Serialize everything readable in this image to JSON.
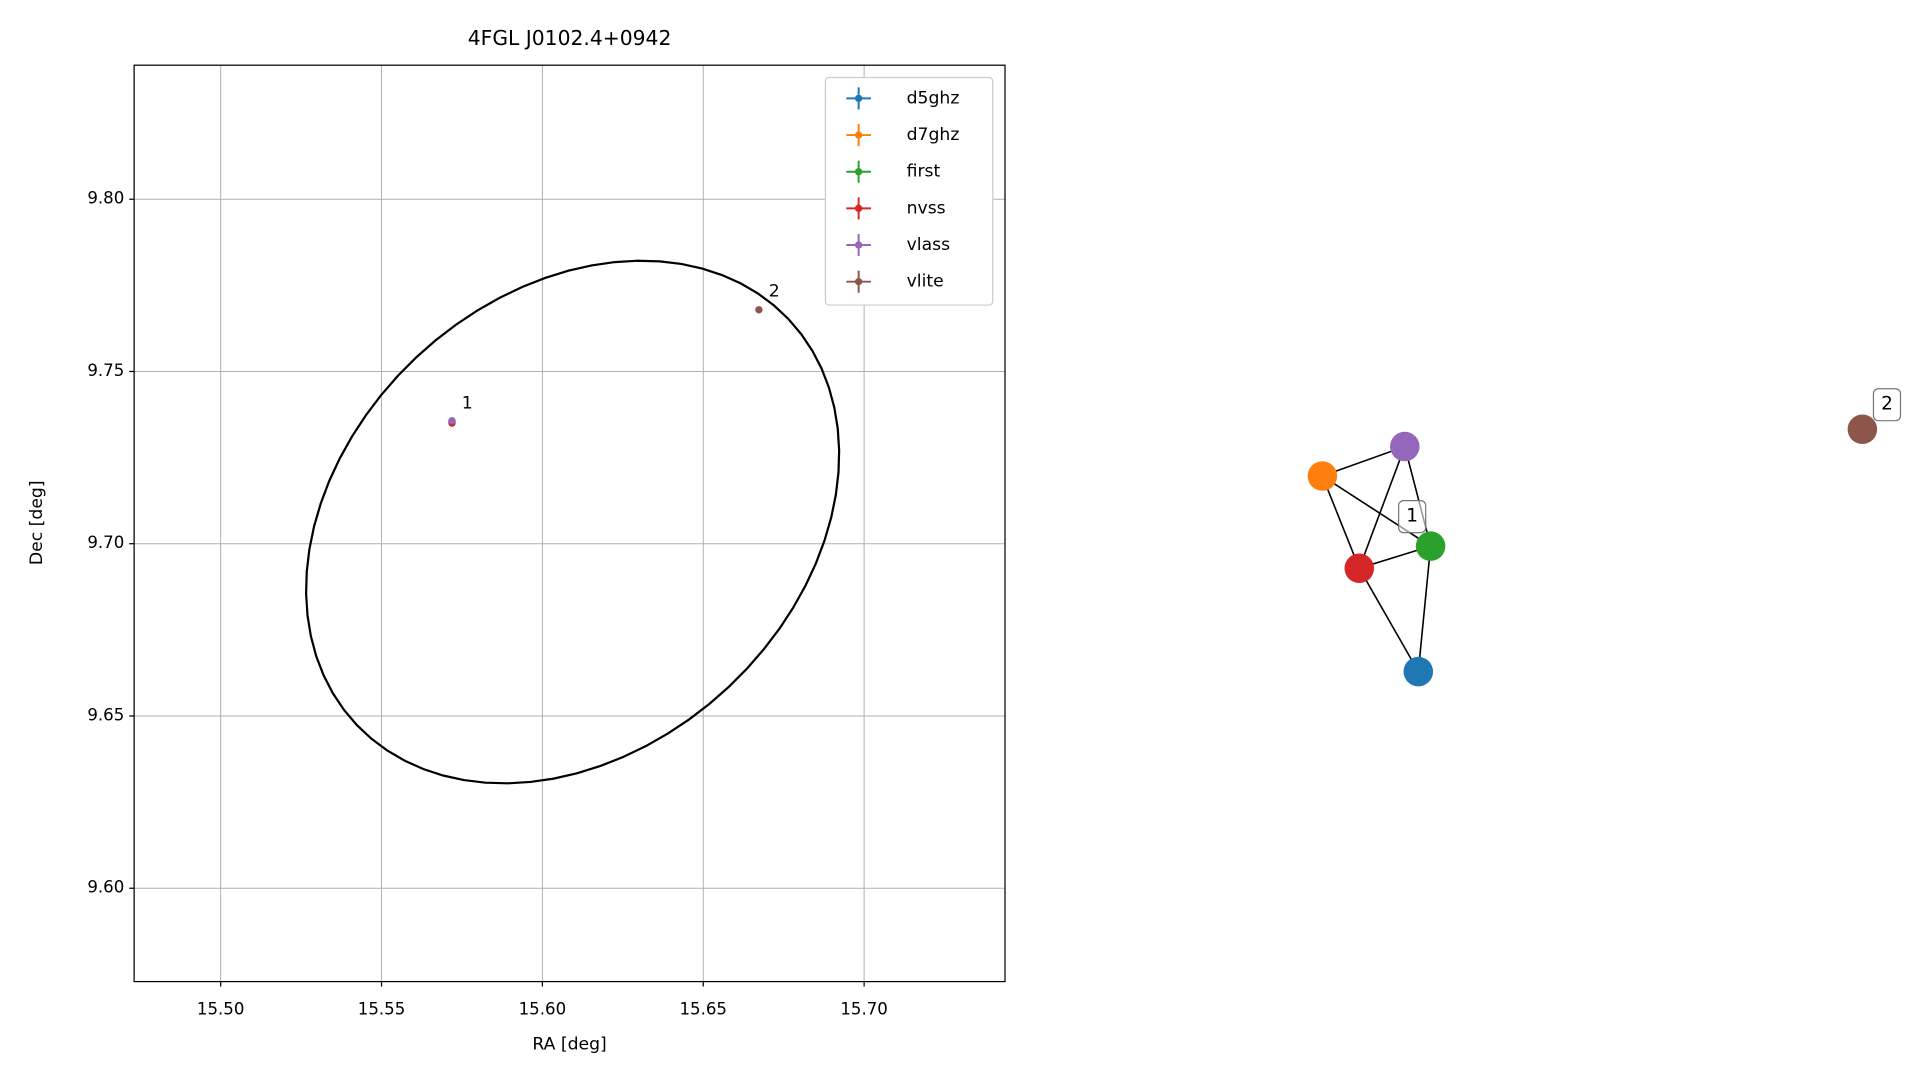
{
  "chart_data": [
    {
      "type": "scatter",
      "title": "4FGL J0102.4+0942",
      "x_label": "RA [deg]",
      "y_label": "Dec [deg]",
      "xlim": [
        15.4731,
        15.7438
      ],
      "ylim": [
        9.5729,
        9.8389
      ],
      "xticks": [
        {
          "value": 15.5,
          "label": "15.50"
        },
        {
          "value": 15.55,
          "label": "15.55"
        },
        {
          "value": 15.6,
          "label": "15.60"
        },
        {
          "value": 15.65,
          "label": "15.65"
        },
        {
          "value": 15.7,
          "label": "15.70"
        }
      ],
      "yticks": [
        {
          "value": 9.6,
          "label": "9.60"
        },
        {
          "value": 9.65,
          "label": "9.65"
        },
        {
          "value": 9.7,
          "label": "9.70"
        },
        {
          "value": 9.75,
          "label": "9.75"
        },
        {
          "value": 9.8,
          "label": "9.80"
        }
      ],
      "grid": true,
      "legend": "upper right",
      "series": [
        {
          "name": "d5ghz",
          "color": "#1f77b4",
          "x": [
            15.5719
          ],
          "values": [
            9.7354
          ]
        },
        {
          "name": "d7ghz",
          "color": "#ff7f0e",
          "x": [
            15.5719
          ],
          "values": [
            9.7354
          ]
        },
        {
          "name": "first",
          "color": "#2ca02c",
          "x": [
            15.5719
          ],
          "values": [
            9.7354
          ]
        },
        {
          "name": "nvss",
          "color": "#d62728",
          "x": [
            15.5719
          ],
          "values": [
            9.735
          ]
        },
        {
          "name": "vlass",
          "color": "#9467bd",
          "x": [
            15.5719
          ],
          "values": [
            9.7357
          ]
        },
        {
          "name": "vlite",
          "color": "#8c564b",
          "x": [
            15.6673
          ],
          "values": [
            9.7679
          ]
        }
      ],
      "ellipse": {
        "center": [
          15.6094,
          9.7063
        ],
        "axis1": [
          0.0671,
          0.0589
        ],
        "axis2": [
          -0.0486,
          0.0478
        ]
      },
      "annotations": [
        {
          "text": "1",
          "x": 15.5719,
          "y": 9.7354
        },
        {
          "text": "2",
          "x": 15.6673,
          "y": 9.7679
        }
      ]
    },
    {
      "type": "network",
      "nodes": [
        "#1f77b4",
        "#ff7f0e",
        "#2ca02c",
        "#d62728",
        "#9467bd",
        "#8c564b"
      ],
      "edges": [
        [
          1,
          4
        ],
        [
          1,
          2
        ],
        [
          1,
          3
        ],
        [
          4,
          3
        ],
        [
          4,
          2
        ],
        [
          3,
          2
        ],
        [
          3,
          0
        ],
        [
          2,
          0
        ]
      ],
      "labels": [
        "1",
        "2"
      ]
    }
  ]
}
